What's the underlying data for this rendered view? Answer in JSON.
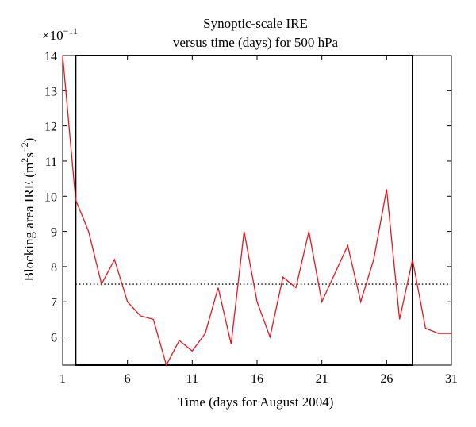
{
  "chart_data": {
    "type": "line",
    "title_line1": "Synoptic-scale IRE",
    "title_line2": "versus time (days) for 500 hPa",
    "xlabel": "Time (days for August 2004)",
    "ylabel_main": "Blocking area IRE (m",
    "ylabel_sup1": "2",
    "ylabel_mid": "s",
    "ylabel_sup2": "−2",
    "ylabel_end": ")",
    "y_multiplier_base": "×10",
    "y_multiplier_exp": "−11",
    "xlim": [
      1,
      31
    ],
    "ylim": [
      5.2,
      14
    ],
    "x_ticks": [
      1,
      6,
      11,
      16,
      21,
      26,
      31
    ],
    "y_ticks": [
      6,
      7,
      8,
      9,
      10,
      11,
      12,
      13,
      14
    ],
    "series": [
      {
        "x": [
          1,
          2,
          3,
          4,
          5,
          6,
          7,
          8,
          9,
          10,
          11,
          12,
          13,
          14,
          15,
          16,
          17,
          18,
          19,
          20,
          21,
          22,
          23,
          24,
          25,
          26,
          27,
          28,
          29,
          30,
          31
        ],
        "values": [
          14.0,
          9.9,
          9.0,
          7.5,
          8.2,
          7.0,
          6.6,
          6.5,
          5.2,
          5.9,
          5.6,
          6.1,
          7.4,
          5.8,
          9.0,
          7.0,
          6.0,
          7.7,
          7.4,
          9.0,
          7.0,
          7.8,
          8.6,
          7.0,
          8.2,
          10.2,
          6.5,
          8.2,
          6.25,
          6.1,
          6.1
        ],
        "color": "#e8141c"
      }
    ],
    "threshold": {
      "y": 7.5,
      "style": "dotted",
      "color": "#000000"
    },
    "blocking_box": {
      "x_start": 2,
      "x_end": 28
    }
  }
}
